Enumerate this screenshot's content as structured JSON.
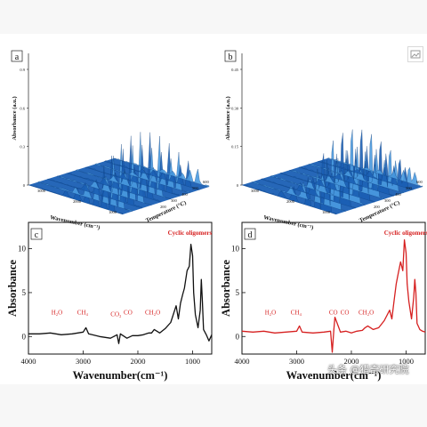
{
  "corner_icon": "image-icon",
  "watermark": "头条 @猎奇研究院",
  "colors": {
    "surface_blue": "#1a5fb4",
    "surface_light": "#4a9be0",
    "black_line": "#111111",
    "red_line": "#d62020",
    "label_red": "#d62020"
  },
  "chart_data": [
    {
      "panel": "a",
      "type": "area",
      "surface": "3d",
      "ylabel": "Absorbance (a.u.)",
      "xlabel": "Wavenumber (cm⁻¹)",
      "zlabel": "Temperature (°C)",
      "z_ticks": [
        "0",
        "0.3",
        "0.6",
        "0.9"
      ],
      "x_ticks": [
        "3000",
        "2000",
        "1000"
      ],
      "t_ticks": [
        "200",
        "300",
        "400",
        "500",
        "600"
      ]
    },
    {
      "panel": "b",
      "type": "area",
      "surface": "3d",
      "ylabel": "Absorbance (a.u.)",
      "xlabel": "Wavenumber (cm⁻¹)",
      "zlabel": "Temperature (°C)",
      "z_ticks": [
        "0",
        "0.15",
        "0.30",
        "0.45"
      ],
      "x_ticks": [
        "3000",
        "2000",
        "1000"
      ],
      "t_ticks": [
        "200",
        "300",
        "400",
        "500",
        "600"
      ]
    },
    {
      "panel": "c",
      "type": "line",
      "xlabel": "Wavenumber(cm⁻¹)",
      "ylabel": "Absorbance",
      "xlim": [
        4000,
        650
      ],
      "ylim": [
        -2,
        13
      ],
      "x_ticks": [
        4000,
        3000,
        2000,
        1000
      ],
      "y_ticks": [
        0,
        5,
        10
      ],
      "series": [
        {
          "x": [
            4000,
            3800,
            3600,
            3400,
            3200,
            3000,
            2950,
            2900,
            2700,
            2500,
            2380,
            2350,
            2320,
            2200,
            2100,
            2000,
            1900,
            1800,
            1750,
            1700,
            1600,
            1500,
            1400,
            1300,
            1260,
            1220,
            1180,
            1150,
            1100,
            1060,
            1030,
            1000,
            980,
            950,
            900,
            860,
            840,
            820,
            800,
            750,
            700,
            650
          ],
          "y": [
            0.3,
            0.3,
            0.4,
            0.2,
            0.3,
            0.5,
            1.0,
            0.3,
            0.0,
            -0.2,
            0.2,
            -0.8,
            0.3,
            -0.2,
            0.1,
            0.1,
            0.2,
            0.4,
            0.4,
            0.8,
            0.4,
            0.9,
            1.6,
            3.5,
            2.0,
            3.8,
            4.8,
            5.5,
            7.5,
            8.0,
            10.5,
            9.2,
            5.0,
            2.5,
            1.0,
            3.0,
            6.5,
            4.0,
            0.8,
            0.2,
            -0.5,
            0.2
          ]
        }
      ],
      "annotations": [
        {
          "text": "H₂O",
          "x": 3480,
          "y": 2.5
        },
        {
          "text": "CH₄",
          "x": 3010,
          "y": 2.5
        },
        {
          "text": "CO₂",
          "x": 2400,
          "y": 2.3
        },
        {
          "text": "CO",
          "x": 2180,
          "y": 2.5
        },
        {
          "text": "CH₂O",
          "x": 1730,
          "y": 2.5
        },
        {
          "text": "Cyclic oligomers",
          "x": 1050,
          "y": 11.6
        }
      ]
    },
    {
      "panel": "d",
      "type": "line",
      "xlabel": "Wavenumber(cm⁻¹)",
      "ylabel": "Absorbance",
      "xlim": [
        4000,
        650
      ],
      "ylim": [
        -2,
        13
      ],
      "x_ticks": [
        4000,
        3000,
        2000,
        1000
      ],
      "y_ticks": [
        0,
        5,
        10
      ],
      "series": [
        {
          "x": [
            4000,
            3800,
            3600,
            3400,
            3200,
            3000,
            2950,
            2900,
            2700,
            2500,
            2380,
            2350,
            2320,
            2300,
            2200,
            2100,
            2000,
            1900,
            1800,
            1750,
            1700,
            1600,
            1500,
            1400,
            1300,
            1260,
            1220,
            1180,
            1150,
            1100,
            1060,
            1030,
            1000,
            980,
            950,
            900,
            860,
            840,
            820,
            800,
            750,
            700,
            650
          ],
          "y": [
            0.6,
            0.5,
            0.6,
            0.4,
            0.5,
            0.6,
            1.2,
            0.5,
            0.4,
            0.5,
            0.6,
            -1.8,
            0.8,
            2.2,
            0.5,
            0.6,
            0.4,
            0.6,
            0.7,
            1.0,
            1.2,
            0.8,
            1.0,
            1.8,
            3.0,
            2.0,
            4.0,
            6.0,
            7.0,
            8.5,
            7.5,
            11.0,
            9.5,
            6.0,
            4.0,
            2.0,
            4.5,
            6.5,
            5.0,
            1.5,
            0.8,
            0.6,
            0.5
          ]
        }
      ],
      "annotations": [
        {
          "text": "H₂O",
          "x": 3480,
          "y": 2.5
        },
        {
          "text": "CH₄",
          "x": 3010,
          "y": 2.5
        },
        {
          "text": "CO",
          "x": 2330,
          "y": 2.5
        },
        {
          "text": "CO",
          "x": 2120,
          "y": 2.5
        },
        {
          "text": "CH₂O",
          "x": 1730,
          "y": 2.5
        },
        {
          "text": "Cyclic oligomers",
          "x": 1000,
          "y": 11.6
        }
      ]
    }
  ]
}
